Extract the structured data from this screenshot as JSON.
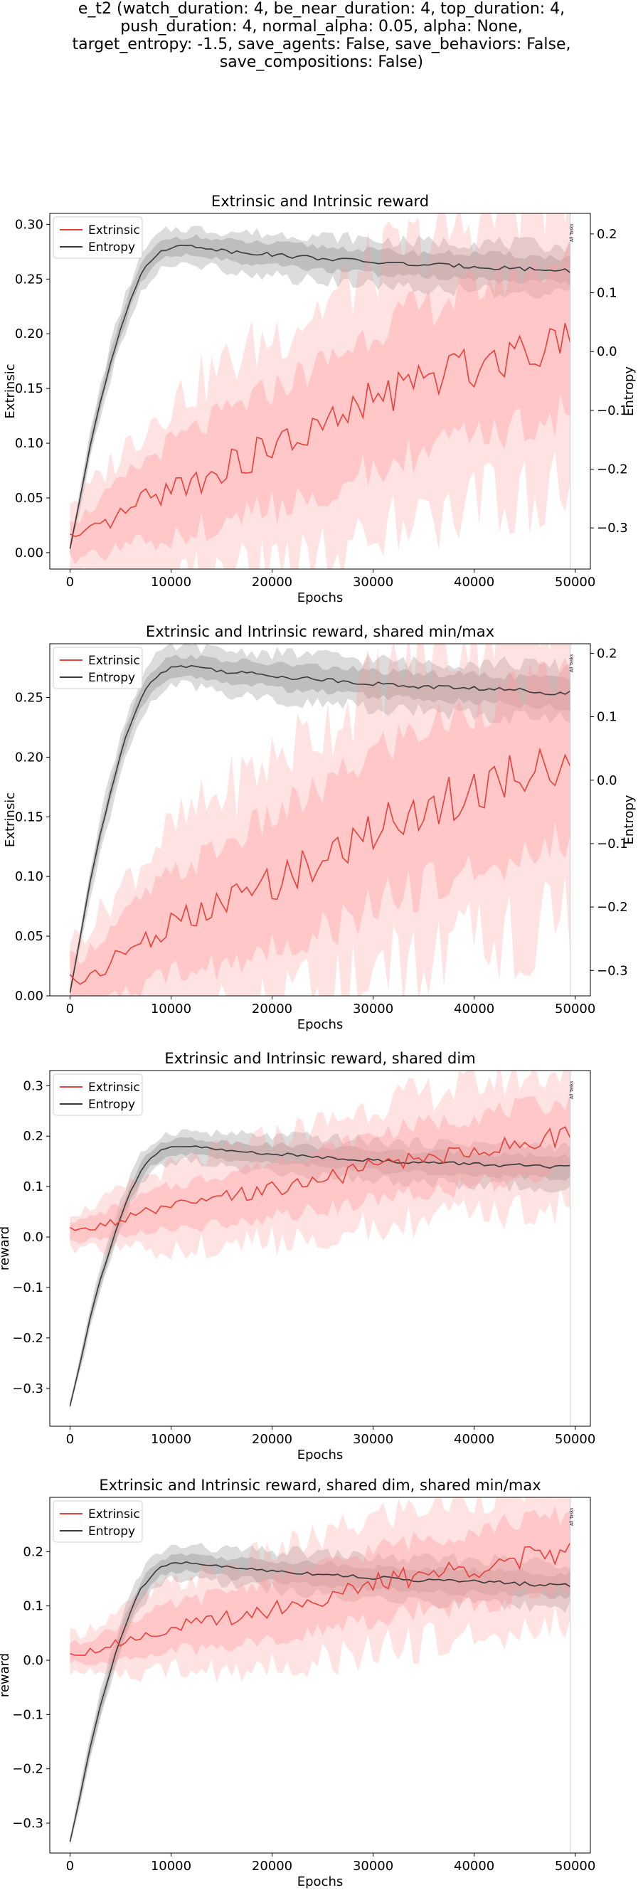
{
  "suptitle": "e_t2 (watch_duration: 4, be_near_duration: 4, top_duration: 4,\npush_duration: 4, normal_alpha: 0.05, alpha: None,\ntarget_entropy: -1.5, save_agents: False, save_behaviors: False,\nsave_compositions: False)",
  "colors": {
    "extrinsic": "#e8403a",
    "extrinsic_band": "#ff9b9b",
    "entropy": "#3a3a3a",
    "entropy_band": "#9a9a9a",
    "vline": "#c8c8c8"
  },
  "chart_data": [
    {
      "type": "line",
      "title": "Extrinsic and Intrinsic reward",
      "xlabel": "Epochs",
      "ylabel": "Extrinsic",
      "y2label": "Entropy",
      "dual_axis": true,
      "xlim": [
        -2000,
        51500
      ],
      "ylim": [
        -0.015,
        0.31
      ],
      "y2lim": [
        -0.37,
        0.235
      ],
      "xticks": [
        "0",
        "10000",
        "20000",
        "30000",
        "40000",
        "50000"
      ],
      "yticks": [
        "0.00",
        "0.05",
        "0.10",
        "0.15",
        "0.20",
        "0.25",
        "0.30"
      ],
      "y2ticks": [
        "−0.3",
        "−0.2",
        "−0.1",
        "0.0",
        "0.1",
        "0.2"
      ],
      "legend": [
        "Extrinsic",
        "Entropy"
      ],
      "legend_loc": "upper-left",
      "vline_x": 49500,
      "vline_label": "All Tasks"
    },
    {
      "type": "line",
      "title": "Extrinsic and Intrinsic reward, shared min/max",
      "xlabel": "Epochs",
      "ylabel": "Extrinsic",
      "y2label": "Entropy",
      "dual_axis": true,
      "xlim": [
        -2000,
        51500
      ],
      "ylim": [
        0.0,
        0.295
      ],
      "y2lim": [
        -0.34,
        0.215
      ],
      "xticks": [
        "0",
        "10000",
        "20000",
        "30000",
        "40000",
        "50000"
      ],
      "yticks": [
        "0.00",
        "0.05",
        "0.10",
        "0.15",
        "0.20",
        "0.25"
      ],
      "y2ticks": [
        "−0.3",
        "−0.2",
        "−0.1",
        "0.0",
        "0.1",
        "0.2"
      ],
      "legend": [
        "Extrinsic",
        "Entropy"
      ],
      "legend_loc": "upper-left",
      "vline_x": 49500,
      "vline_label": "All Tasks"
    },
    {
      "type": "line",
      "title": "Extrinsic and Intrinsic reward, shared dim",
      "xlabel": "Epochs",
      "ylabel": "reward",
      "dual_axis": false,
      "xlim": [
        -2000,
        51500
      ],
      "ylim": [
        -0.375,
        0.33
      ],
      "xticks": [
        "0",
        "10000",
        "20000",
        "30000",
        "40000",
        "50000"
      ],
      "yticks": [
        "−0.3",
        "−0.2",
        "−0.1",
        "0.0",
        "0.1",
        "0.2",
        "0.3"
      ],
      "legend": [
        "Extrinsic",
        "Entropy"
      ],
      "legend_loc": "upper-left",
      "vline_x": 49500,
      "vline_label": "All Tasks"
    },
    {
      "type": "line",
      "title": "Extrinsic and Intrinsic reward, shared dim, shared min/max",
      "xlabel": "Epochs",
      "ylabel": "reward",
      "dual_axis": false,
      "xlim": [
        -2000,
        51500
      ],
      "ylim": [
        -0.355,
        0.3
      ],
      "xticks": [
        "0",
        "10000",
        "20000",
        "30000",
        "40000",
        "50000"
      ],
      "yticks": [
        "−0.3",
        "−0.2",
        "−0.1",
        "0.0",
        "0.1",
        "0.2"
      ],
      "legend": [
        "Extrinsic",
        "Entropy"
      ],
      "legend_loc": "upper-left",
      "vline_x": 49500,
      "vline_label": "All Tasks"
    }
  ],
  "series": {
    "epochs": [
      0,
      1000,
      2000,
      3000,
      4000,
      5000,
      6000,
      7000,
      8000,
      9000,
      10000,
      12000,
      14000,
      16000,
      18000,
      20000,
      22000,
      24000,
      26000,
      28000,
      30000,
      32000,
      34000,
      36000,
      38000,
      40000,
      42000,
      44000,
      46000,
      48000,
      49500
    ],
    "extrinsic": [
      0.015,
      0.012,
      0.018,
      0.022,
      0.028,
      0.033,
      0.04,
      0.045,
      0.05,
      0.055,
      0.058,
      0.065,
      0.072,
      0.08,
      0.088,
      0.095,
      0.103,
      0.11,
      0.118,
      0.128,
      0.14,
      0.148,
      0.155,
      0.16,
      0.165,
      0.172,
      0.178,
      0.185,
      0.19,
      0.195,
      0.2
    ],
    "extrinsic_spread": [
      0.018,
      0.02,
      0.022,
      0.025,
      0.028,
      0.03,
      0.033,
      0.035,
      0.038,
      0.04,
      0.042,
      0.045,
      0.048,
      0.05,
      0.052,
      0.054,
      0.056,
      0.058,
      0.06,
      0.062,
      0.064,
      0.065,
      0.066,
      0.067,
      0.068,
      0.069,
      0.07,
      0.07,
      0.07,
      0.07,
      0.07
    ],
    "entropy": [
      -0.335,
      -0.25,
      -0.16,
      -0.085,
      -0.02,
      0.04,
      0.09,
      0.13,
      0.155,
      0.17,
      0.178,
      0.18,
      0.175,
      0.17,
      0.168,
      0.165,
      0.162,
      0.16,
      0.157,
      0.155,
      0.152,
      0.15,
      0.148,
      0.147,
      0.146,
      0.145,
      0.143,
      0.142,
      0.14,
      0.138,
      0.138
    ],
    "entropy_spread": [
      0.004,
      0.008,
      0.012,
      0.014,
      0.016,
      0.016,
      0.016,
      0.016,
      0.016,
      0.016,
      0.016,
      0.016,
      0.016,
      0.018,
      0.018,
      0.018,
      0.02,
      0.02,
      0.02,
      0.02,
      0.02,
      0.02,
      0.02,
      0.021,
      0.021,
      0.022,
      0.022,
      0.022,
      0.022,
      0.022,
      0.022
    ]
  }
}
